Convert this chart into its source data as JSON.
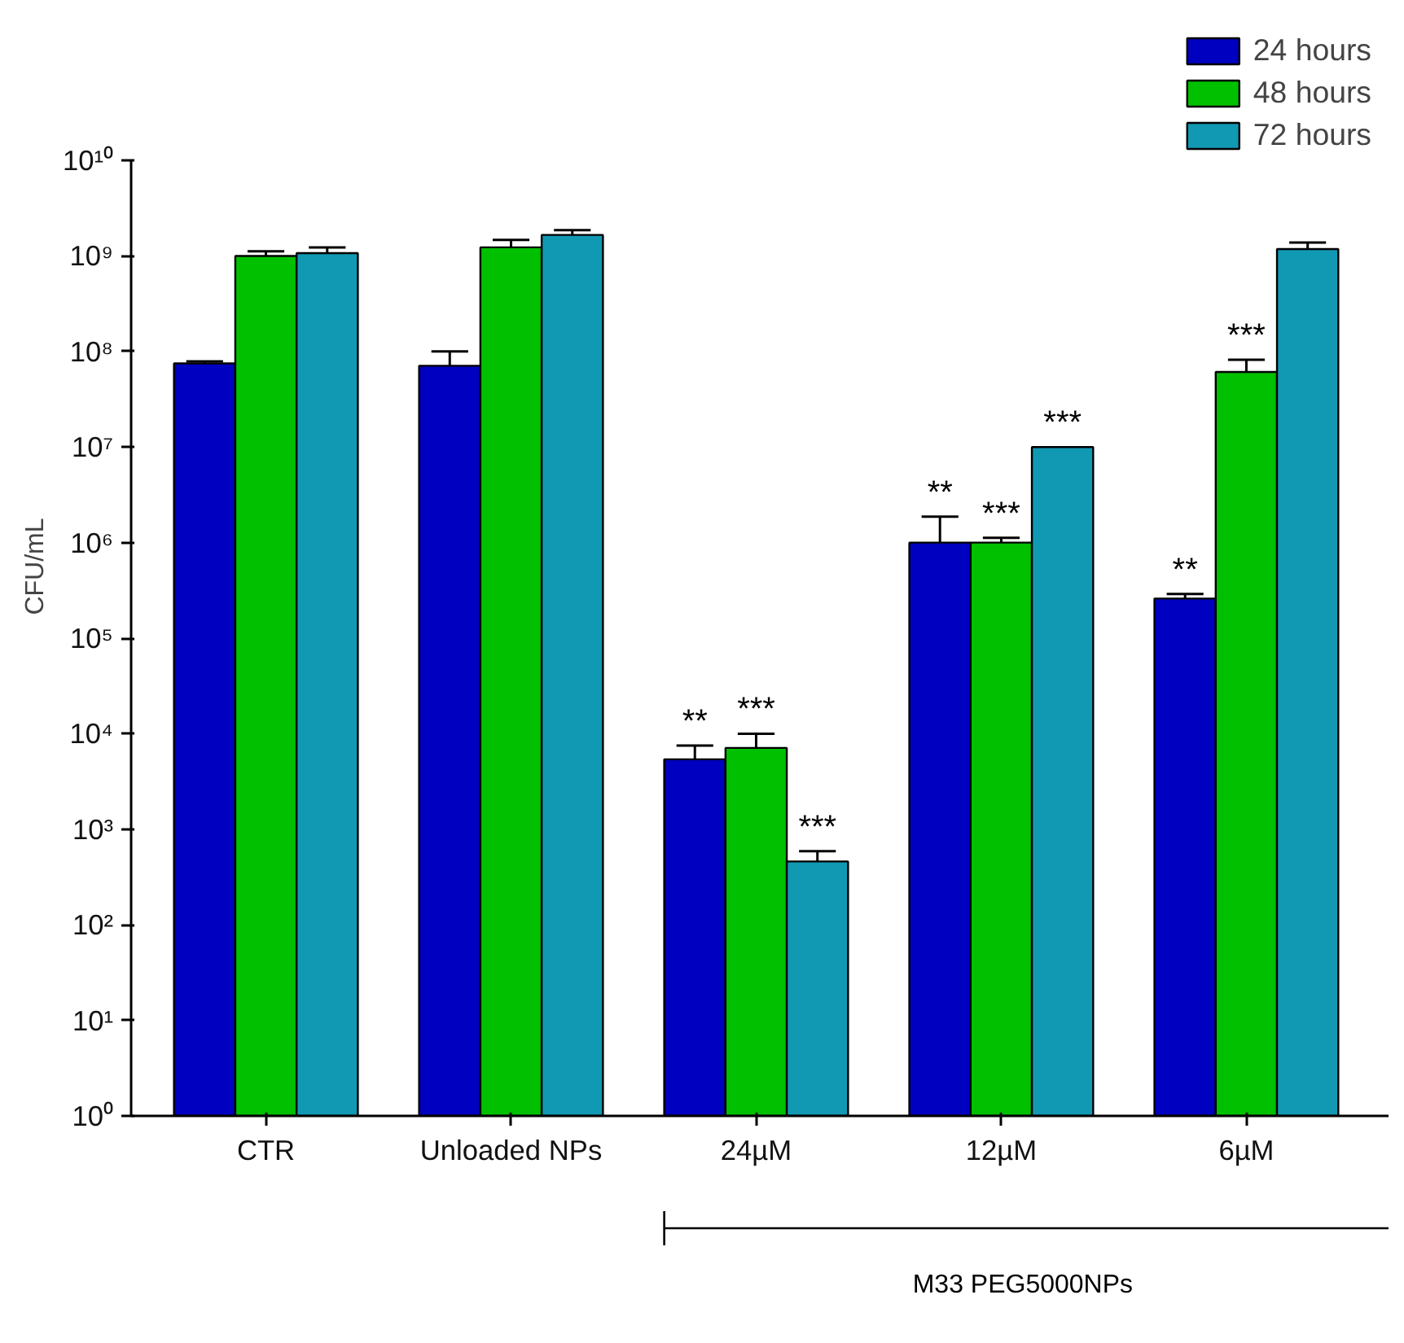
{
  "chart_data": {
    "type": "bar",
    "ylabel": "CFU/mL",
    "log": true,
    "legend": "top right",
    "grid": false,
    "categories": [
      "CTR",
      "Unloaded NPs",
      "24µM",
      "12µM",
      "6µM"
    ],
    "ylim": [
      1,
      10000000000
    ],
    "yticks": [
      {
        "value": 1,
        "label": "10⁰"
      },
      {
        "value": 10,
        "label": "10¹"
      },
      {
        "value": 100,
        "label": "10²"
      },
      {
        "value": 1000,
        "label": "10³"
      },
      {
        "value": 10000,
        "label": "10⁴"
      },
      {
        "value": 100000,
        "label": "10⁵"
      },
      {
        "value": 1000000,
        "label": "10⁶"
      },
      {
        "value": 10000000,
        "label": "10⁷"
      },
      {
        "value": 100000000,
        "label": "10⁸"
      },
      {
        "value": 1000000000,
        "label": "10⁹"
      },
      {
        "value": 10000000000,
        "label": "10¹⁰"
      }
    ],
    "series": [
      {
        "name": "24 hours",
        "color": "#0000c0",
        "values": [
          75000000,
          71000000,
          5400,
          1000000,
          260000
        ],
        "errors": [
          [
            75000000,
            79000000
          ],
          [
            71000000,
            100000000
          ],
          [
            5400,
            7500
          ],
          [
            1000000,
            1870000
          ],
          [
            260000,
            290000
          ]
        ],
        "value_labels": [
          null,
          null,
          "**",
          "**",
          "**"
        ]
      },
      {
        "name": "48 hours",
        "color": "#00c000",
        "values": [
          1000000000,
          1230000000,
          7100,
          1000000,
          61000000
        ],
        "errors": [
          [
            1000000000,
            1120000000
          ],
          [
            1230000000,
            1470000000
          ],
          [
            7100,
            10000
          ],
          [
            1000000,
            1120000
          ],
          [
            61000000,
            82000000
          ]
        ],
        "value_labels": [
          null,
          null,
          "***",
          "***",
          "***"
        ]
      },
      {
        "name": "72 hours",
        "color": "#1199b4",
        "values": [
          1070000000,
          1660000000,
          460,
          10000000,
          1180000000
        ],
        "errors": [
          [
            1070000000,
            1230000000
          ],
          [
            1660000000,
            1860000000
          ],
          [
            460,
            590
          ],
          null,
          [
            1180000000,
            1380000000
          ]
        ],
        "value_labels": [
          null,
          null,
          "***",
          "***",
          null
        ]
      }
    ],
    "annotations": [
      "M33  PEG5000NPs"
    ]
  }
}
